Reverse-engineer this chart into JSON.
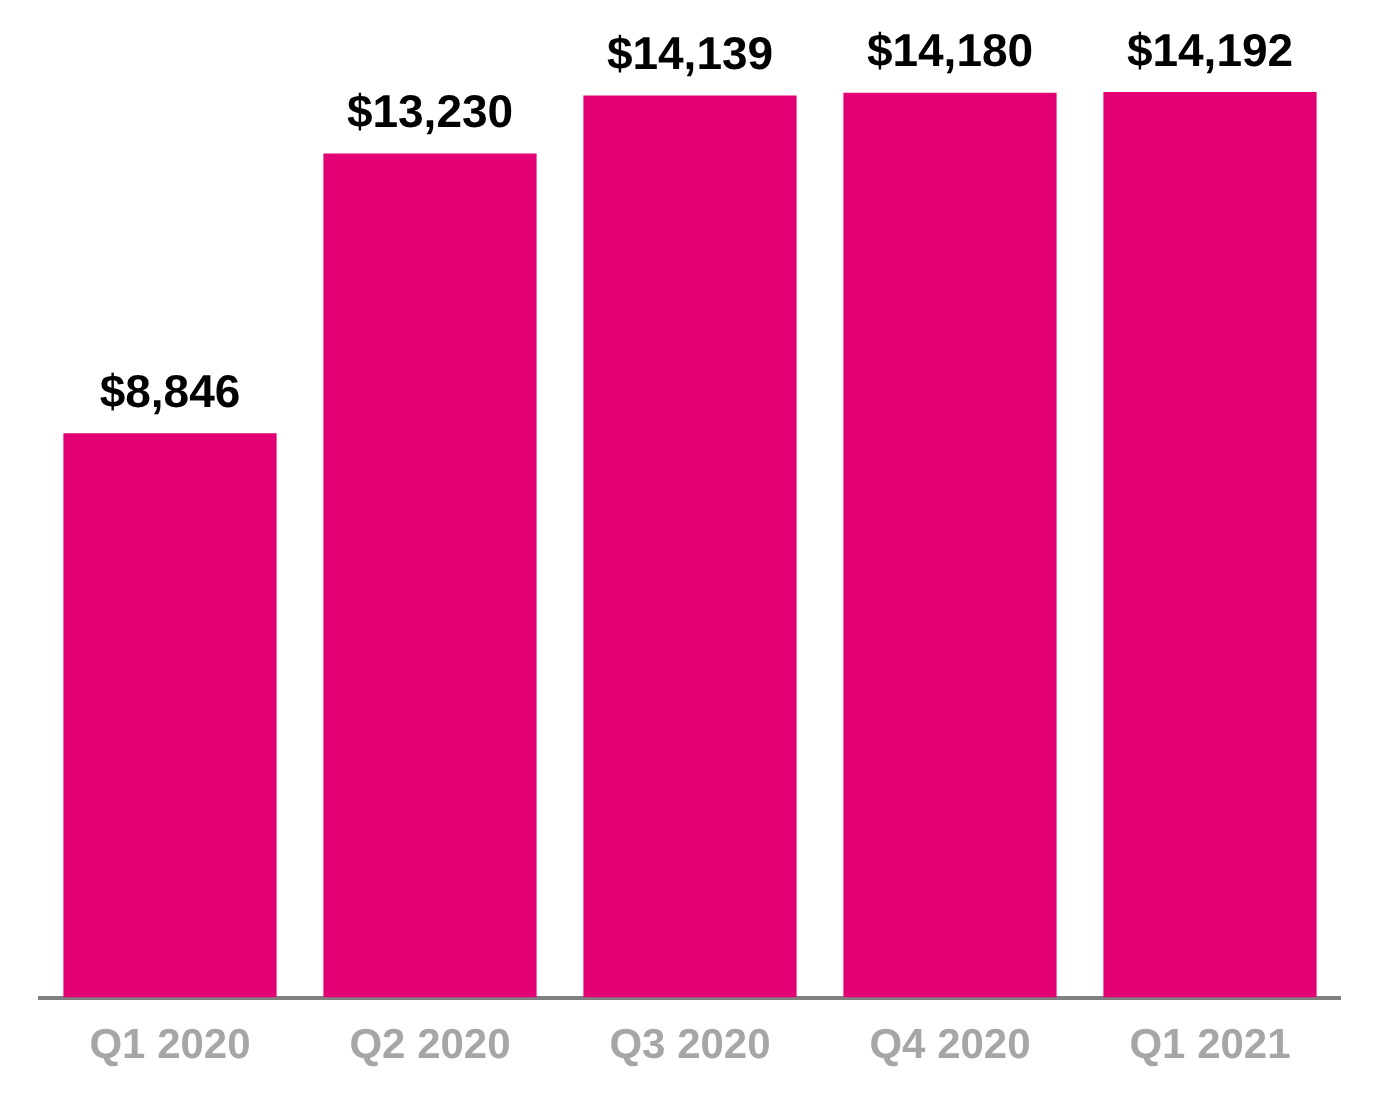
{
  "chart_data": {
    "type": "bar",
    "categories": [
      "Q1 2020",
      "Q2 2020",
      "Q3 2020",
      "Q4 2020",
      "Q1 2021"
    ],
    "values": [
      8846,
      13230,
      14139,
      14180,
      14192
    ],
    "value_labels": [
      "$8,846",
      "$13,230",
      "$14,139",
      "$14,180",
      "$14,192"
    ],
    "color": "#e20074",
    "grid": false,
    "legend": false
  }
}
